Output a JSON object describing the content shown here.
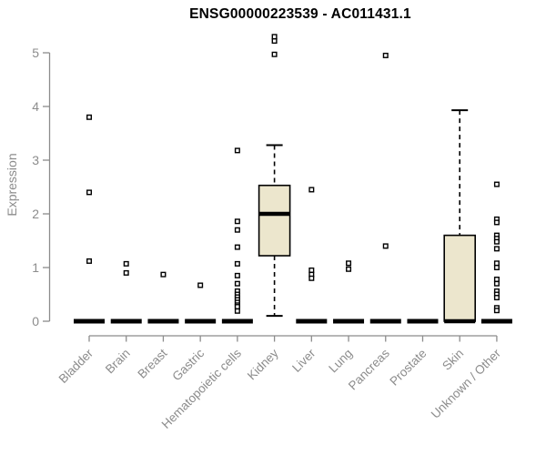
{
  "chart_data": {
    "type": "boxplot",
    "title": "ENSG00000223539 - AC011431.1",
    "ylabel": "Expression",
    "xlabel": "",
    "ylim": [
      0,
      5.3
    ],
    "yticks": [
      0,
      1,
      2,
      3,
      4,
      5
    ],
    "grid": false,
    "legend": null,
    "categories": [
      "Bladder",
      "Brain",
      "Breast",
      "Gastric",
      "Hematopoietic cells",
      "Kidney",
      "Liver",
      "Lung",
      "Pancreas",
      "Prostate",
      "Skin",
      "Unknown / Other"
    ],
    "series": [
      {
        "name": "Bladder",
        "q1": 0,
        "median": 0,
        "q3": 0,
        "whisker_low": 0,
        "whisker_high": 0,
        "outliers": [
          3.8,
          2.4,
          1.12
        ]
      },
      {
        "name": "Brain",
        "q1": 0,
        "median": 0,
        "q3": 0,
        "whisker_low": 0,
        "whisker_high": 0,
        "outliers": [
          1.07,
          0.9
        ]
      },
      {
        "name": "Breast",
        "q1": 0,
        "median": 0,
        "q3": 0,
        "whisker_low": 0,
        "whisker_high": 0,
        "outliers": [
          0.87
        ]
      },
      {
        "name": "Gastric",
        "q1": 0,
        "median": 0,
        "q3": 0,
        "whisker_low": 0,
        "whisker_high": 0,
        "outliers": [
          0.67
        ]
      },
      {
        "name": "Hematopoietic cells",
        "q1": 0,
        "median": 0,
        "q3": 0,
        "whisker_low": 0,
        "whisker_high": 0,
        "outliers": [
          3.18,
          1.86,
          1.7,
          1.38,
          1.07,
          0.85,
          0.7,
          0.56,
          0.5,
          0.45,
          0.4,
          0.35,
          0.3,
          0.27,
          0.19
        ]
      },
      {
        "name": "Kidney",
        "q1": 1.22,
        "median": 2.0,
        "q3": 2.53,
        "whisker_low": 0.1,
        "whisker_high": 3.28,
        "outliers": [
          5.3,
          5.22,
          4.97
        ]
      },
      {
        "name": "Liver",
        "q1": 0,
        "median": 0,
        "q3": 0,
        "whisker_low": 0,
        "whisker_high": 0,
        "outliers": [
          2.45,
          0.95,
          0.87,
          0.8
        ]
      },
      {
        "name": "Lung",
        "q1": 0,
        "median": 0,
        "q3": 0,
        "whisker_low": 0,
        "whisker_high": 0,
        "outliers": [
          1.08,
          0.97
        ]
      },
      {
        "name": "Pancreas",
        "q1": 0,
        "median": 0,
        "q3": 0,
        "whisker_low": 0,
        "whisker_high": 0,
        "outliers": [
          4.95,
          1.4
        ]
      },
      {
        "name": "Prostate",
        "q1": 0,
        "median": 0,
        "q3": 0,
        "whisker_low": 0,
        "whisker_high": 0,
        "outliers": []
      },
      {
        "name": "Skin",
        "q1": 0,
        "median": 0,
        "q3": 1.6,
        "whisker_low": 0,
        "whisker_high": 3.93,
        "outliers": []
      },
      {
        "name": "Unknown / Other",
        "q1": 0,
        "median": 0,
        "q3": 0,
        "whisker_low": 0,
        "whisker_high": 0,
        "outliers": [
          2.55,
          1.9,
          1.84,
          1.6,
          1.54,
          1.48,
          1.35,
          1.08,
          1.0,
          0.78,
          0.7,
          0.56,
          0.5,
          0.44,
          0.25,
          0.2
        ]
      }
    ],
    "style": {
      "box_fill": "#ece6cd",
      "box_stroke": "#000000",
      "median_color": "#000000",
      "whisker_color": "#000000",
      "outlier_fill": "#ffffff",
      "axis_color": "#8c8c8c",
      "label_color": "#8c8c8c",
      "title_color": "#000000",
      "background": "#ffffff"
    }
  }
}
